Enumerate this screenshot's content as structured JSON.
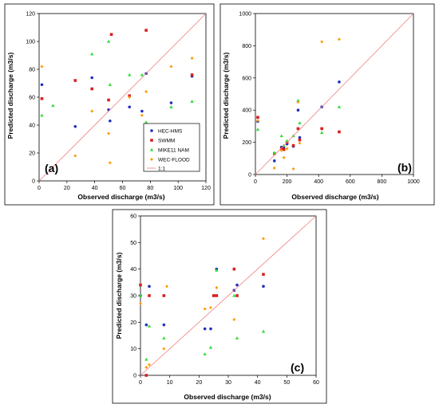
{
  "marker_styles": {
    "HEC-HMS": {
      "color": "#1f2fbf",
      "shape": "circle"
    },
    "SWMM": {
      "color": "#d62020",
      "shape": "square"
    },
    "MIKE11 NAM": {
      "color": "#33dd33",
      "shape": "triangle"
    },
    "WEC-FLOOD": {
      "color": "#ff9900",
      "shape": "diamond"
    },
    "line_color": "#f08080"
  },
  "chart_data": [
    {
      "type": "scatter",
      "panel_label": "(a)",
      "xlabel": "Observed discharge (m3/s)",
      "ylabel": "Predicted discharge (m3/s)",
      "xlim": [
        0,
        120
      ],
      "ylim": [
        0,
        120
      ],
      "xticks": [
        "0",
        "20",
        "40",
        "60",
        "80",
        "100",
        "120"
      ],
      "yticks": [
        "0",
        "20",
        "40",
        "60",
        "80",
        "100",
        "120"
      ],
      "legend_position": "bottom-right",
      "legend": [
        "HEC-HMS",
        "SWMM",
        "MIKE11 NAM",
        "WEC-FLOOD",
        "1:1"
      ],
      "series": [
        {
          "name": "HEC-HMS",
          "points": [
            [
              2,
              69
            ],
            [
              26,
              39
            ],
            [
              38,
              74
            ],
            [
              50,
              51
            ],
            [
              51,
              43
            ],
            [
              65,
              53
            ],
            [
              74,
              50
            ],
            [
              77,
              77
            ],
            [
              95,
              56
            ],
            [
              110,
              75
            ]
          ]
        },
        {
          "name": "SWMM",
          "points": [
            [
              2,
              59
            ],
            [
              26,
              72
            ],
            [
              38,
              66
            ],
            [
              50,
              58
            ],
            [
              52,
              105
            ],
            [
              65,
              61
            ],
            [
              77,
              108
            ],
            [
              110,
              76
            ]
          ]
        },
        {
          "name": "MIKE11 NAM",
          "points": [
            [
              2,
              47
            ],
            [
              10,
              54
            ],
            [
              38,
              91
            ],
            [
              50,
              100
            ],
            [
              51,
              69
            ],
            [
              65,
              76
            ],
            [
              74,
              76
            ],
            [
              77,
              42
            ],
            [
              95,
              53
            ],
            [
              110,
              57
            ]
          ]
        },
        {
          "name": "WEC-FLOOD",
          "points": [
            [
              2,
              82
            ],
            [
              26,
              18
            ],
            [
              38,
              50
            ],
            [
              50,
              34
            ],
            [
              51,
              13
            ],
            [
              65,
              60
            ],
            [
              74,
              47
            ],
            [
              77,
              64
            ],
            [
              95,
              82
            ],
            [
              110,
              88
            ]
          ]
        },
        {
          "name": "1:1",
          "line": [
            [
              0,
              0
            ],
            [
              120,
              120
            ]
          ]
        }
      ]
    },
    {
      "type": "scatter",
      "panel_label": "(b)",
      "xlabel": "Observed discharge (m3/s)",
      "ylabel": "Predicted discharge (m3/s)",
      "xlim": [
        0,
        1000
      ],
      "ylim": [
        0,
        1000
      ],
      "xticks": [
        "0",
        "200",
        "400",
        "600",
        "800",
        "1000"
      ],
      "yticks": [
        "0",
        "200",
        "400",
        "600",
        "800",
        "1000"
      ],
      "series": [
        {
          "name": "HEC-HMS",
          "points": [
            [
              15,
              330
            ],
            [
              120,
              85
            ],
            [
              165,
              170
            ],
            [
              180,
              165
            ],
            [
              200,
              190
            ],
            [
              240,
              175
            ],
            [
              270,
              400
            ],
            [
              280,
              230
            ],
            [
              420,
              420
            ],
            [
              530,
              575
            ]
          ]
        },
        {
          "name": "SWMM",
          "points": [
            [
              15,
              355
            ],
            [
              120,
              130
            ],
            [
              165,
              160
            ],
            [
              180,
              155
            ],
            [
              200,
              200
            ],
            [
              240,
              180
            ],
            [
              270,
              285
            ],
            [
              280,
              215
            ],
            [
              420,
              285
            ],
            [
              530,
              265
            ]
          ]
        },
        {
          "name": "MIKE11 NAM",
          "points": [
            [
              15,
              280
            ],
            [
              120,
              135
            ],
            [
              165,
              240
            ],
            [
              180,
              180
            ],
            [
              200,
              210
            ],
            [
              240,
              240
            ],
            [
              270,
              460
            ],
            [
              280,
              320
            ],
            [
              420,
              260
            ],
            [
              530,
              420
            ]
          ]
        },
        {
          "name": "WEC-FLOOD",
          "points": [
            [
              15,
              335
            ],
            [
              120,
              40
            ],
            [
              165,
              150
            ],
            [
              180,
              105
            ],
            [
              200,
              160
            ],
            [
              240,
              35
            ],
            [
              270,
              450
            ],
            [
              280,
              195
            ],
            [
              420,
              825
            ],
            [
              530,
              840
            ]
          ]
        },
        {
          "name": "1:1",
          "line": [
            [
              0,
              0
            ],
            [
              1000,
              1000
            ]
          ]
        }
      ]
    },
    {
      "type": "scatter",
      "panel_label": "(c)",
      "xlabel": "Observed discharge (m3/s)",
      "ylabel": "Predicted discharge (m3/s)",
      "xlim": [
        0,
        60
      ],
      "ylim": [
        0,
        60
      ],
      "xticks": [
        "0",
        "10",
        "20",
        "30",
        "40",
        "50",
        "60"
      ],
      "yticks": [
        "0",
        "10",
        "20",
        "30",
        "40",
        "50",
        "60"
      ],
      "series": [
        {
          "name": "HEC-HMS",
          "points": [
            [
              0,
              30
            ],
            [
              2,
              19
            ],
            [
              3,
              33.5
            ],
            [
              8,
              19
            ],
            [
              22,
              17.5
            ],
            [
              24,
              17.5
            ],
            [
              26,
              40
            ],
            [
              32,
              32
            ],
            [
              33,
              34
            ],
            [
              42,
              33.5
            ]
          ]
        },
        {
          "name": "SWMM",
          "points": [
            [
              0,
              34
            ],
            [
              2,
              0
            ],
            [
              3,
              30
            ],
            [
              8,
              30
            ],
            [
              25,
              30
            ],
            [
              26,
              30
            ],
            [
              32,
              40
            ],
            [
              33,
              30
            ],
            [
              42,
              38
            ]
          ]
        },
        {
          "name": "MIKE11 NAM",
          "points": [
            [
              0,
              30
            ],
            [
              2,
              6
            ],
            [
              3,
              18.5
            ],
            [
              8,
              14
            ],
            [
              22,
              8
            ],
            [
              24,
              10.5
            ],
            [
              26,
              39.5
            ],
            [
              32,
              30
            ],
            [
              33,
              14
            ],
            [
              42,
              16.5
            ]
          ]
        },
        {
          "name": "WEC-FLOOD",
          "points": [
            [
              0,
              27
            ],
            [
              2,
              3
            ],
            [
              3,
              4
            ],
            [
              8,
              10
            ],
            [
              9,
              33.5
            ],
            [
              22,
              25
            ],
            [
              24,
              25.5
            ],
            [
              26,
              33
            ],
            [
              32,
              21
            ],
            [
              42,
              51.5
            ]
          ]
        },
        {
          "name": "1:1",
          "line": [
            [
              0,
              0
            ],
            [
              60,
              60
            ]
          ]
        }
      ]
    }
  ]
}
